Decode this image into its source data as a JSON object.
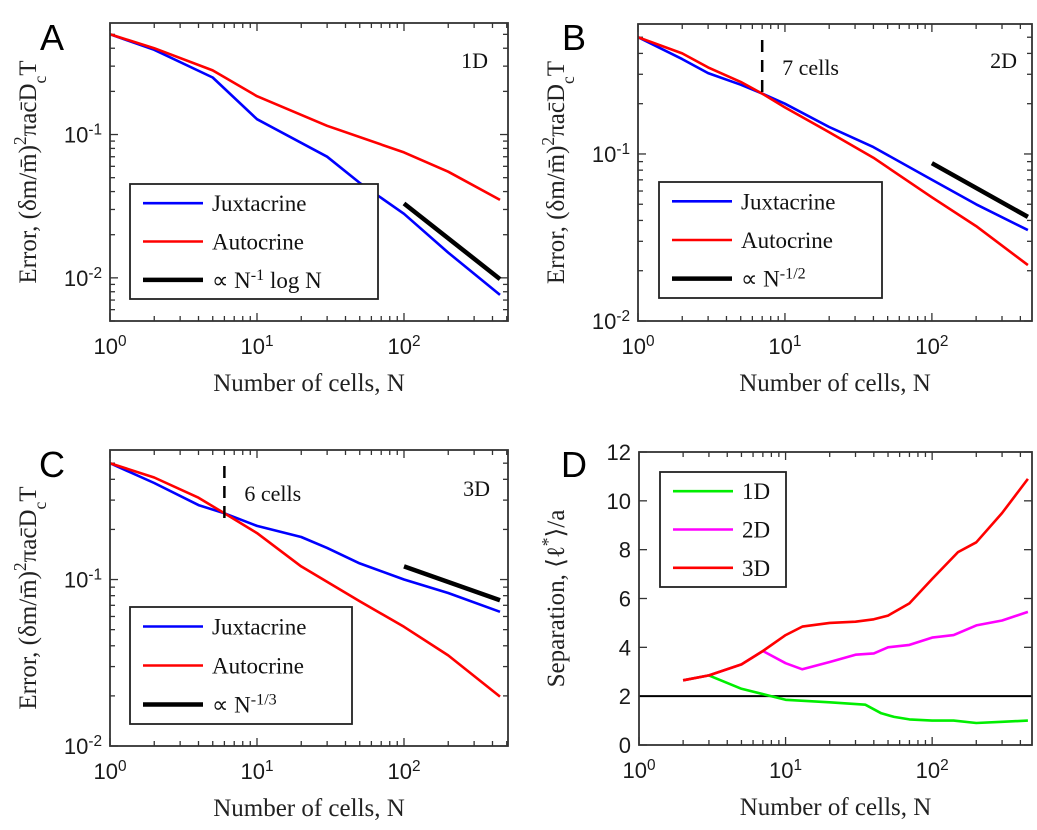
{
  "chart_data": [
    {
      "panel": "A",
      "type": "line",
      "xscale": "log",
      "yscale": "log",
      "xlim": [
        1,
        510
      ],
      "ylim": [
        0.005,
        0.6
      ],
      "xticks": [
        "10^{0}",
        "10^{1}",
        "10^{2}"
      ],
      "yticks": [
        {
          "v": 0.1,
          "label": "10^{-1}"
        },
        {
          "v": 0.01,
          "label": "10^{-2}"
        }
      ],
      "xlabel": "Number of cells, N",
      "ylabel": "Error, (δm/m̄)^{2}πac̄D_{c}T",
      "corner_text": "1D",
      "legend": "bottom-left",
      "series": [
        {
          "name": "Juxtacrine",
          "color": "#0000ff",
          "x": [
            1,
            2,
            5,
            10,
            30,
            50,
            100,
            200,
            450
          ],
          "y": [
            0.5,
            0.39,
            0.25,
            0.128,
            0.07,
            0.046,
            0.028,
            0.015,
            0.0076
          ]
        },
        {
          "name": "Autocrine",
          "color": "#ff0000",
          "x": [
            1,
            2,
            5,
            10,
            30,
            100,
            200,
            450
          ],
          "y": [
            0.5,
            0.4,
            0.28,
            0.185,
            0.115,
            0.075,
            0.055,
            0.035
          ]
        },
        {
          "name": "∝ N^{-1} log N",
          "color": "#000000",
          "thick": true,
          "x": [
            100,
            450
          ],
          "y": [
            0.033,
            0.0098
          ]
        }
      ],
      "annotations": []
    },
    {
      "panel": "B",
      "type": "line",
      "xscale": "log",
      "yscale": "log",
      "xlim": [
        1,
        480
      ],
      "ylim": [
        0.01,
        0.6
      ],
      "xticks": [
        "10^{0}",
        "10^{1}",
        "10^{2}"
      ],
      "yticks": [
        {
          "v": 0.1,
          "label": "10^{-1}"
        },
        {
          "v": 0.01,
          "label": "10^{-2}"
        }
      ],
      "xlabel": "Number of cells, N",
      "ylabel": "Error, (δm/m̄)^{2}πac̄D_{c}T",
      "corner_text": "2D",
      "legend": "bottom-left",
      "series": [
        {
          "name": "Juxtacrine",
          "color": "#0000ff",
          "x": [
            1,
            2,
            3,
            5,
            7,
            10,
            20,
            40,
            100,
            200,
            450
          ],
          "y": [
            0.5,
            0.37,
            0.305,
            0.26,
            0.23,
            0.2,
            0.145,
            0.11,
            0.07,
            0.05,
            0.035
          ]
        },
        {
          "name": "Autocrine",
          "color": "#ff0000",
          "x": [
            1,
            2,
            3,
            5,
            7,
            10,
            20,
            40,
            100,
            200,
            450
          ],
          "y": [
            0.5,
            0.4,
            0.33,
            0.27,
            0.23,
            0.19,
            0.135,
            0.095,
            0.055,
            0.037,
            0.0216
          ]
        },
        {
          "name": "∝ N^{-1/2}",
          "color": "#000000",
          "thick": true,
          "x": [
            100,
            450
          ],
          "y": [
            0.088,
            0.042
          ]
        }
      ],
      "annotations": [
        {
          "x": 7,
          "text": "7 cells"
        }
      ]
    },
    {
      "panel": "C",
      "type": "line",
      "xscale": "log",
      "yscale": "log",
      "xlim": [
        1,
        510
      ],
      "ylim": [
        0.01,
        0.6
      ],
      "xticks": [
        "10^{0}",
        "10^{1}",
        "10^{2}"
      ],
      "yticks": [
        {
          "v": 0.1,
          "label": "10^{-1}"
        },
        {
          "v": 0.01,
          "label": "10^{-2}"
        }
      ],
      "xlabel": "Number of cells, N",
      "ylabel": "Error, (δm/m̄)^{2}πac̄D_{c}T",
      "corner_text": "3D",
      "legend": "bottom-left",
      "series": [
        {
          "name": "Juxtacrine",
          "color": "#0000ff",
          "x": [
            1,
            2,
            4,
            6,
            10,
            20,
            30,
            50,
            100,
            200,
            450
          ],
          "y": [
            0.5,
            0.38,
            0.28,
            0.25,
            0.21,
            0.18,
            0.155,
            0.125,
            0.1,
            0.083,
            0.064
          ]
        },
        {
          "name": "Autocrine",
          "color": "#ff0000",
          "x": [
            1,
            2,
            4,
            6,
            10,
            20,
            50,
            100,
            200,
            450
          ],
          "y": [
            0.5,
            0.41,
            0.31,
            0.25,
            0.19,
            0.12,
            0.074,
            0.052,
            0.035,
            0.0198
          ]
        },
        {
          "name": "∝ N^{-1/3}",
          "color": "#000000",
          "thick": true,
          "x": [
            100,
            450
          ],
          "y": [
            0.12,
            0.075
          ]
        }
      ],
      "annotations": [
        {
          "x": 6,
          "text": "6 cells"
        }
      ]
    },
    {
      "panel": "D",
      "type": "line",
      "xscale": "log",
      "yscale": "linear",
      "xlim": [
        1,
        480
      ],
      "ylim": [
        0,
        12
      ],
      "xticks": [
        "10^{0}",
        "10^{1}",
        "10^{2}"
      ],
      "yticks": [
        {
          "v": 0,
          "label": "0"
        },
        {
          "v": 2,
          "label": "2"
        },
        {
          "v": 4,
          "label": "4"
        },
        {
          "v": 6,
          "label": "6"
        },
        {
          "v": 8,
          "label": "8"
        },
        {
          "v": 10,
          "label": "10"
        },
        {
          "v": 12,
          "label": "12"
        }
      ],
      "xlabel": "Number of cells, N",
      "ylabel": "Separation, ⟨ℓ^{*}⟩/a",
      "corner_text": "",
      "legend": "top-left",
      "hline": 2,
      "series": [
        {
          "name": "1D",
          "color": "#00ee00",
          "x": [
            2,
            3,
            5,
            8,
            10,
            20,
            35,
            45,
            55,
            70,
            100,
            140,
            200,
            300,
            450
          ],
          "y": [
            2.65,
            2.85,
            2.3,
            2.0,
            1.85,
            1.75,
            1.65,
            1.3,
            1.15,
            1.05,
            1.0,
            1.0,
            0.9,
            0.95,
            1.0
          ]
        },
        {
          "name": "2D",
          "color": "#ff00ff",
          "x": [
            2,
            3,
            5,
            7,
            10,
            13,
            20,
            30,
            40,
            50,
            70,
            100,
            140,
            200,
            300,
            450
          ],
          "y": [
            2.65,
            2.85,
            3.3,
            3.85,
            3.35,
            3.1,
            3.4,
            3.7,
            3.75,
            4.0,
            4.1,
            4.4,
            4.5,
            4.9,
            5.1,
            5.45
          ]
        },
        {
          "name": "3D",
          "color": "#ff0000",
          "x": [
            2,
            3,
            5,
            7,
            10,
            13,
            20,
            30,
            40,
            50,
            70,
            100,
            150,
            200,
            300,
            450
          ],
          "y": [
            2.65,
            2.85,
            3.3,
            3.85,
            4.5,
            4.85,
            5.0,
            5.05,
            5.15,
            5.3,
            5.8,
            6.8,
            7.9,
            8.3,
            9.5,
            10.9
          ]
        }
      ],
      "annotations": []
    }
  ]
}
